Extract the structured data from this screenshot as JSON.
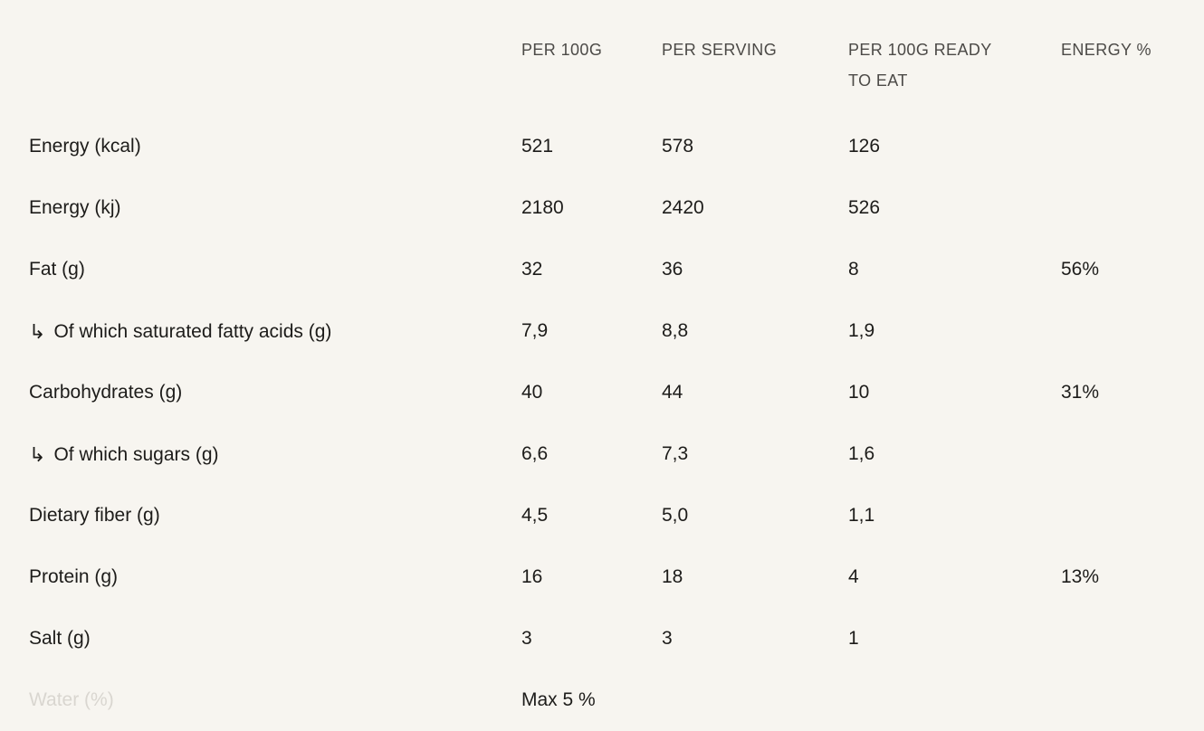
{
  "theme": {
    "background": "#f7f5f0",
    "text_color": "#1d1c1a",
    "header_color": "#4c4a47",
    "faded_label_color": "#d9d6d0"
  },
  "icons": {
    "sub_item_arrow": "↳"
  },
  "table": {
    "headers": [
      "PER 100G",
      "PER SERVING",
      "PER 100G READY TO EAT",
      "ENERGY %"
    ],
    "rows": [
      {
        "label": "Energy (kcal)",
        "sub": false,
        "faded": false,
        "values": [
          "521",
          "578",
          "126",
          ""
        ]
      },
      {
        "label": "Energy (kj)",
        "sub": false,
        "faded": false,
        "values": [
          "2180",
          "2420",
          "526",
          ""
        ]
      },
      {
        "label": "Fat (g)",
        "sub": false,
        "faded": false,
        "values": [
          "32",
          "36",
          "8",
          "56%"
        ]
      },
      {
        "label": "Of which saturated fatty acids (g)",
        "sub": true,
        "faded": false,
        "values": [
          "7,9",
          "8,8",
          "1,9",
          ""
        ]
      },
      {
        "label": "Carbohydrates (g)",
        "sub": false,
        "faded": false,
        "values": [
          "40",
          "44",
          "10",
          "31%"
        ]
      },
      {
        "label": "Of which sugars (g)",
        "sub": true,
        "faded": false,
        "values": [
          "6,6",
          "7,3",
          "1,6",
          ""
        ]
      },
      {
        "label": "Dietary fiber (g)",
        "sub": false,
        "faded": false,
        "values": [
          "4,5",
          "5,0",
          "1,1",
          ""
        ]
      },
      {
        "label": "Protein (g)",
        "sub": false,
        "faded": false,
        "values": [
          "16",
          "18",
          "4",
          "13%"
        ]
      },
      {
        "label": "Salt (g)",
        "sub": false,
        "faded": false,
        "values": [
          "3",
          "3",
          "1",
          ""
        ]
      },
      {
        "label": "Water (%)",
        "sub": false,
        "faded": true,
        "values": [
          "Max 5 %",
          "",
          "",
          ""
        ]
      }
    ]
  }
}
